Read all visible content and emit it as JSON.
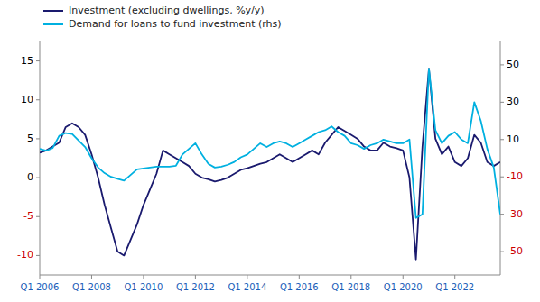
{
  "chart_data": {
    "type": "line",
    "categories": [
      "Q1 2006",
      null,
      null,
      null,
      null,
      null,
      null,
      null,
      "Q1 2008",
      null,
      null,
      null,
      null,
      null,
      null,
      null,
      "Q1 2010",
      null,
      null,
      null,
      null,
      null,
      null,
      null,
      "Q1 2012",
      null,
      null,
      null,
      null,
      null,
      null,
      null,
      "Q1 2014",
      null,
      null,
      null,
      null,
      null,
      null,
      null,
      "Q1 2016",
      null,
      null,
      null,
      null,
      null,
      null,
      null,
      "Q1 2018",
      null,
      null,
      null,
      null,
      null,
      null,
      null,
      "Q1 2020",
      null,
      null,
      null,
      null,
      null,
      null,
      null,
      "Q1 2022",
      null,
      null,
      null,
      null,
      null,
      null,
      null
    ],
    "series": [
      {
        "name": "Investment (excluding dwellings, %y/y)",
        "color": "#1a1a6e",
        "values": [
          3.2,
          3.5,
          4.0,
          4.5,
          6.5,
          7.0,
          6.5,
          5.5,
          3.0,
          0.0,
          -3.5,
          -6.5,
          -9.5,
          -10.0,
          -8.0,
          -6.0,
          -3.5,
          -1.5,
          0.5,
          3.5,
          3.0,
          2.5,
          2.0,
          1.5,
          0.5,
          0.0,
          -0.2,
          -0.5,
          -0.3,
          0.0,
          0.5,
          1.0,
          1.2,
          1.5,
          1.8,
          2.0,
          2.5,
          3.0,
          2.5,
          2.0,
          2.5,
          3.0,
          3.5,
          3.0,
          4.5,
          5.5,
          6.5,
          6.0,
          5.5,
          5.0,
          4.0,
          3.5,
          3.5,
          4.5,
          4.0,
          3.8,
          3.5,
          0.0,
          -10.5,
          4.0,
          14.0,
          5.0,
          3.0,
          4.0,
          2.0,
          1.5,
          2.5,
          5.5,
          4.5,
          2.0,
          1.5,
          2.0
        ]
      },
      {
        "name": "Demand for loans to fund investment (rhs)",
        "color": "#00b0e0",
        "axis": "y2",
        "values": [
          5.0,
          4.0,
          5.5,
          12.0,
          13.5,
          13.0,
          9.5,
          6.0,
          0.0,
          -5.0,
          -8.0,
          -10.0,
          -11.0,
          -12.0,
          -9.0,
          -6.0,
          -5.5,
          -5.0,
          -4.5,
          -4.5,
          -4.5,
          -4.0,
          2.0,
          5.0,
          8.0,
          2.0,
          -3.0,
          -5.0,
          -4.5,
          -3.5,
          -2.0,
          0.5,
          2.0,
          5.0,
          8.0,
          6.0,
          8.0,
          9.0,
          8.0,
          6.0,
          8.0,
          10.0,
          12.0,
          14.0,
          15.0,
          17.0,
          14.0,
          12.0,
          8.0,
          7.0,
          5.0,
          7.0,
          8.0,
          10.0,
          9.0,
          8.0,
          8.0,
          10.0,
          -32.0,
          -30.0,
          48.0,
          15.0,
          8.0,
          12.0,
          14.0,
          10.0,
          8.0,
          30.0,
          20.0,
          5.0,
          -5.0,
          -30.0
        ]
      }
    ],
    "ylim": [
      -12.5,
      17.5
    ],
    "yticks": [
      -10,
      -5,
      0,
      5,
      10,
      15
    ],
    "y2lim": [
      -62.5,
      62.5
    ],
    "y2ticks": [
      -50,
      -30,
      -10,
      10,
      30,
      50
    ],
    "grid": false,
    "legend": "upper left"
  }
}
